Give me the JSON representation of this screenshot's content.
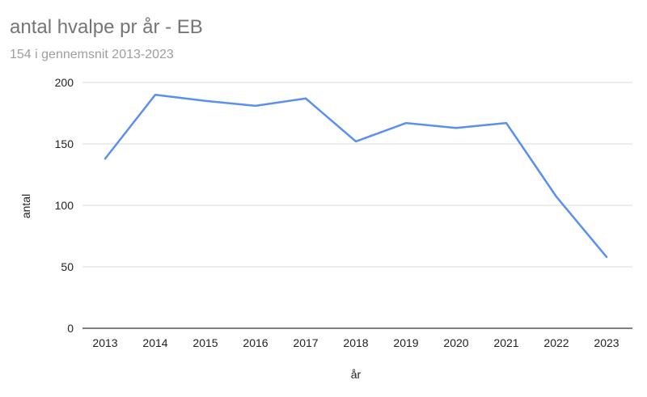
{
  "chart_data": {
    "type": "line",
    "title": "antal hvalpe pr år - EB",
    "subtitle": "154 i gennemsnit 2013-2023",
    "xlabel": "år",
    "ylabel": "antal",
    "categories": [
      "2013",
      "2014",
      "2015",
      "2016",
      "2017",
      "2018",
      "2019",
      "2020",
      "2021",
      "2022",
      "2023"
    ],
    "series": [
      {
        "values": [
          138,
          190,
          185,
          181,
          187,
          152,
          167,
          163,
          167,
          107,
          58
        ]
      }
    ],
    "ylim": [
      0,
      200
    ],
    "yticks": [
      0,
      50,
      100,
      150,
      200
    ],
    "grid": true,
    "legend": "none",
    "colors": {
      "line": "#5b8ff0",
      "grid": "#d9d9d9",
      "baseline": "#333333"
    }
  }
}
